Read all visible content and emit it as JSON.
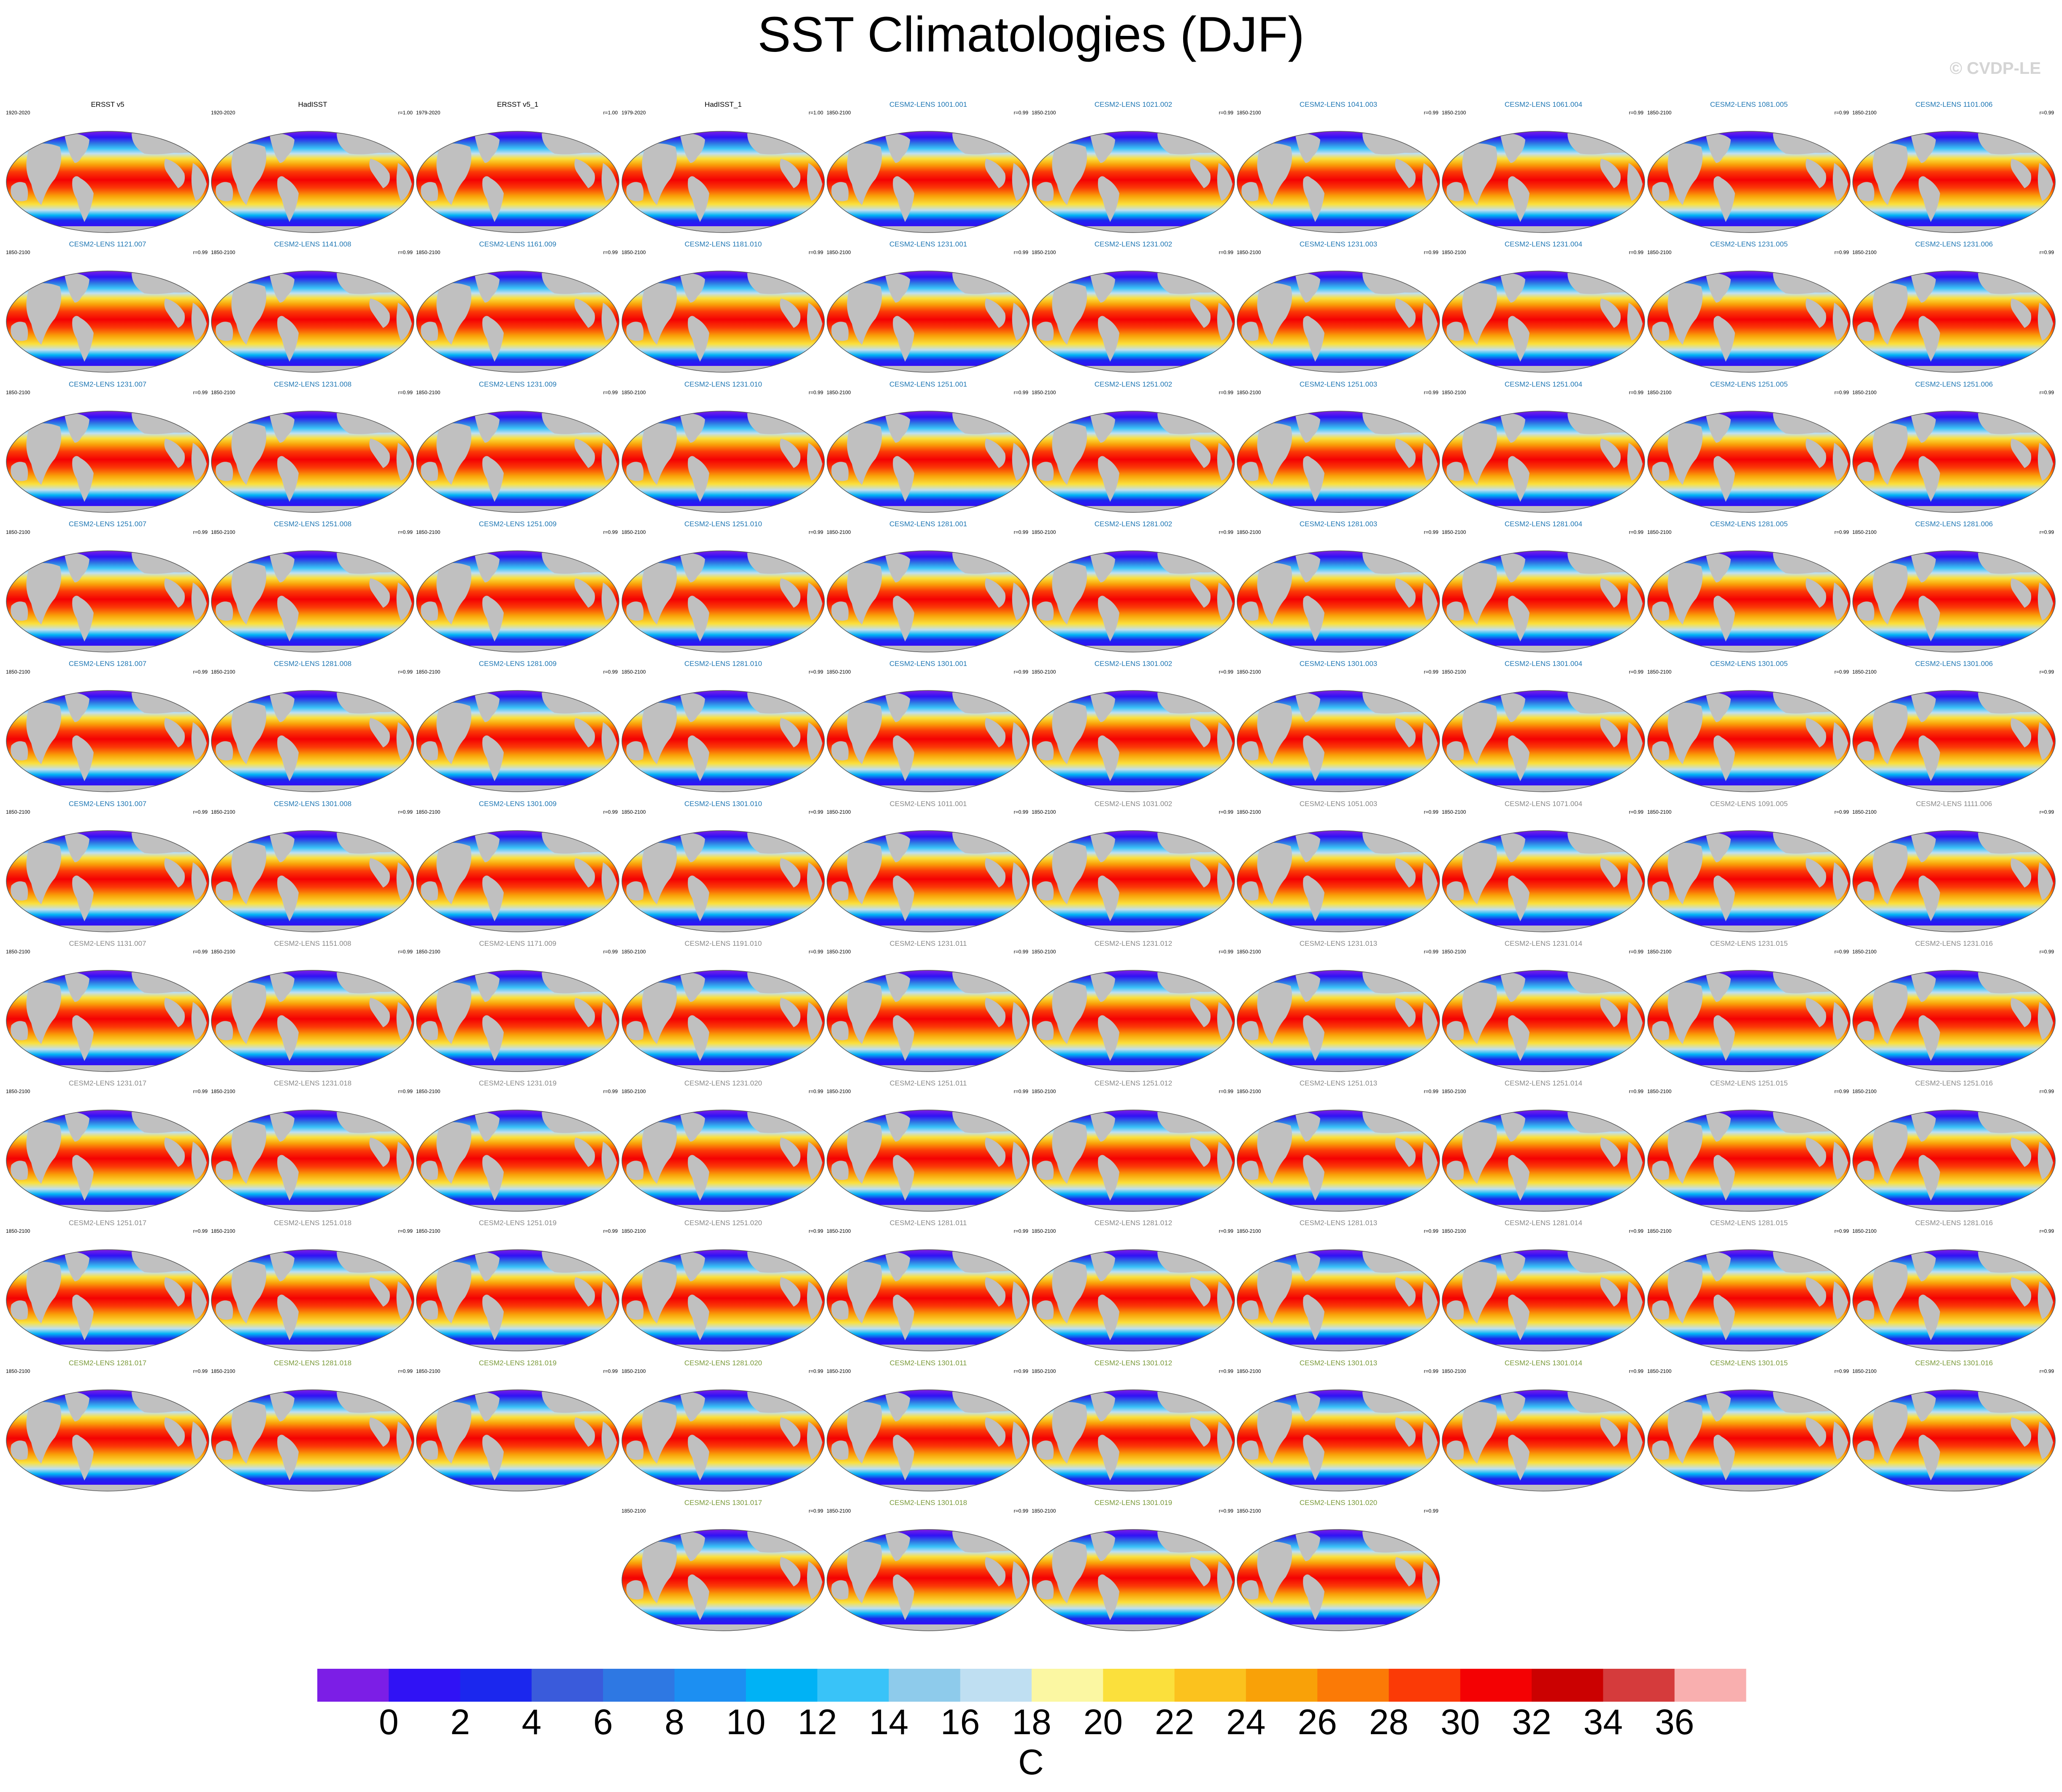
{
  "title": "SST Climatologies (DJF)",
  "watermark": "© CVDP-LE",
  "colors": {
    "land": "#c0c0c0",
    "obs_title": "#000000",
    "cesm_blue": "#1f77b4",
    "cesm_gray": "#888888",
    "cesm_green": "#7a9a3a"
  },
  "chart_data": {
    "type": "heatmap",
    "title": "SST Climatologies (DJF)",
    "projection": "Robinson-style global map",
    "colorbar": {
      "unit": "C",
      "levels": [
        0,
        2,
        4,
        6,
        8,
        10,
        12,
        14,
        16,
        18,
        20,
        22,
        24,
        26,
        28,
        30,
        32,
        34,
        36
      ],
      "colors": [
        "#7c1ee6",
        "#3012f5",
        "#1b27ee",
        "#3a5bdb",
        "#2e78e3",
        "#1c8ff2",
        "#00b2f5",
        "#39c3f8",
        "#8ecbeb",
        "#bfdff2",
        "#fbf7a2",
        "#fbe03c",
        "#fbc21e",
        "#f9a108",
        "#fb7a06",
        "#fb3a06",
        "#f40103",
        "#cb0101",
        "#d53b3c",
        "#f9afaf"
      ],
      "tick_labels": [
        "0",
        "2",
        "4",
        "6",
        "8",
        "10",
        "12",
        "14",
        "16",
        "18",
        "20",
        "22",
        "24",
        "26",
        "28",
        "30",
        "32",
        "34",
        "36"
      ]
    },
    "panels": [
      {
        "label": "ERSST v5",
        "period": "1920-2020",
        "corr": "",
        "style": "obs"
      },
      {
        "label": "HadISST",
        "period": "1920-2020",
        "corr": "r=1.00",
        "style": "obs"
      },
      {
        "label": "ERSST v5_1",
        "period": "1979-2020",
        "corr": "r=1.00",
        "style": "obs"
      },
      {
        "label": "HadISST_1",
        "period": "1979-2020",
        "corr": "r=1.00",
        "style": "obs"
      },
      {
        "label": "CESM2-LENS 1001.001",
        "period": "1850-2100",
        "corr": "r=0.99",
        "style": "blue"
      },
      {
        "label": "CESM2-LENS 1021.002",
        "period": "1850-2100",
        "corr": "r=0.99",
        "style": "blue"
      },
      {
        "label": "CESM2-LENS 1041.003",
        "period": "1850-2100",
        "corr": "r=0.99",
        "style": "blue"
      },
      {
        "label": "CESM2-LENS 1061.004",
        "period": "1850-2100",
        "corr": "r=0.99",
        "style": "blue"
      },
      {
        "label": "CESM2-LENS 1081.005",
        "period": "1850-2100",
        "corr": "r=0.99",
        "style": "blue"
      },
      {
        "label": "CESM2-LENS 1101.006",
        "period": "1850-2100",
        "corr": "r=0.99",
        "style": "blue"
      },
      {
        "label": "CESM2-LENS 1121.007",
        "period": "1850-2100",
        "corr": "r=0.99",
        "style": "blue"
      },
      {
        "label": "CESM2-LENS 1141.008",
        "period": "1850-2100",
        "corr": "r=0.99",
        "style": "blue"
      },
      {
        "label": "CESM2-LENS 1161.009",
        "period": "1850-2100",
        "corr": "r=0.99",
        "style": "blue"
      },
      {
        "label": "CESM2-LENS 1181.010",
        "period": "1850-2100",
        "corr": "r=0.99",
        "style": "blue"
      },
      {
        "label": "CESM2-LENS 1231.001",
        "period": "1850-2100",
        "corr": "r=0.99",
        "style": "blue"
      },
      {
        "label": "CESM2-LENS 1231.002",
        "period": "1850-2100",
        "corr": "r=0.99",
        "style": "blue"
      },
      {
        "label": "CESM2-LENS 1231.003",
        "period": "1850-2100",
        "corr": "r=0.99",
        "style": "blue"
      },
      {
        "label": "CESM2-LENS 1231.004",
        "period": "1850-2100",
        "corr": "r=0.99",
        "style": "blue"
      },
      {
        "label": "CESM2-LENS 1231.005",
        "period": "1850-2100",
        "corr": "r=0.99",
        "style": "blue"
      },
      {
        "label": "CESM2-LENS 1231.006",
        "period": "1850-2100",
        "corr": "r=0.99",
        "style": "blue"
      },
      {
        "label": "CESM2-LENS 1231.007",
        "period": "1850-2100",
        "corr": "r=0.99",
        "style": "blue"
      },
      {
        "label": "CESM2-LENS 1231.008",
        "period": "1850-2100",
        "corr": "r=0.99",
        "style": "blue"
      },
      {
        "label": "CESM2-LENS 1231.009",
        "period": "1850-2100",
        "corr": "r=0.99",
        "style": "blue"
      },
      {
        "label": "CESM2-LENS 1231.010",
        "period": "1850-2100",
        "corr": "r=0.99",
        "style": "blue"
      },
      {
        "label": "CESM2-LENS 1251.001",
        "period": "1850-2100",
        "corr": "r=0.99",
        "style": "blue"
      },
      {
        "label": "CESM2-LENS 1251.002",
        "period": "1850-2100",
        "corr": "r=0.99",
        "style": "blue"
      },
      {
        "label": "CESM2-LENS 1251.003",
        "period": "1850-2100",
        "corr": "r=0.99",
        "style": "blue"
      },
      {
        "label": "CESM2-LENS 1251.004",
        "period": "1850-2100",
        "corr": "r=0.99",
        "style": "blue"
      },
      {
        "label": "CESM2-LENS 1251.005",
        "period": "1850-2100",
        "corr": "r=0.99",
        "style": "blue"
      },
      {
        "label": "CESM2-LENS 1251.006",
        "period": "1850-2100",
        "corr": "r=0.99",
        "style": "blue"
      },
      {
        "label": "CESM2-LENS 1251.007",
        "period": "1850-2100",
        "corr": "r=0.99",
        "style": "blue"
      },
      {
        "label": "CESM2-LENS 1251.008",
        "period": "1850-2100",
        "corr": "r=0.99",
        "style": "blue"
      },
      {
        "label": "CESM2-LENS 1251.009",
        "period": "1850-2100",
        "corr": "r=0.99",
        "style": "blue"
      },
      {
        "label": "CESM2-LENS 1251.010",
        "period": "1850-2100",
        "corr": "r=0.99",
        "style": "blue"
      },
      {
        "label": "CESM2-LENS 1281.001",
        "period": "1850-2100",
        "corr": "r=0.99",
        "style": "blue"
      },
      {
        "label": "CESM2-LENS 1281.002",
        "period": "1850-2100",
        "corr": "r=0.99",
        "style": "blue"
      },
      {
        "label": "CESM2-LENS 1281.003",
        "period": "1850-2100",
        "corr": "r=0.99",
        "style": "blue"
      },
      {
        "label": "CESM2-LENS 1281.004",
        "period": "1850-2100",
        "corr": "r=0.99",
        "style": "blue"
      },
      {
        "label": "CESM2-LENS 1281.005",
        "period": "1850-2100",
        "corr": "r=0.99",
        "style": "blue"
      },
      {
        "label": "CESM2-LENS 1281.006",
        "period": "1850-2100",
        "corr": "r=0.99",
        "style": "blue"
      },
      {
        "label": "CESM2-LENS 1281.007",
        "period": "1850-2100",
        "corr": "r=0.99",
        "style": "blue"
      },
      {
        "label": "CESM2-LENS 1281.008",
        "period": "1850-2100",
        "corr": "r=0.99",
        "style": "blue"
      },
      {
        "label": "CESM2-LENS 1281.009",
        "period": "1850-2100",
        "corr": "r=0.99",
        "style": "blue"
      },
      {
        "label": "CESM2-LENS 1281.010",
        "period": "1850-2100",
        "corr": "r=0.99",
        "style": "blue"
      },
      {
        "label": "CESM2-LENS 1301.001",
        "period": "1850-2100",
        "corr": "r=0.99",
        "style": "blue"
      },
      {
        "label": "CESM2-LENS 1301.002",
        "period": "1850-2100",
        "corr": "r=0.99",
        "style": "blue"
      },
      {
        "label": "CESM2-LENS 1301.003",
        "period": "1850-2100",
        "corr": "r=0.99",
        "style": "blue"
      },
      {
        "label": "CESM2-LENS 1301.004",
        "period": "1850-2100",
        "corr": "r=0.99",
        "style": "blue"
      },
      {
        "label": "CESM2-LENS 1301.005",
        "period": "1850-2100",
        "corr": "r=0.99",
        "style": "blue"
      },
      {
        "label": "CESM2-LENS 1301.006",
        "period": "1850-2100",
        "corr": "r=0.99",
        "style": "blue"
      },
      {
        "label": "CESM2-LENS 1301.007",
        "period": "1850-2100",
        "corr": "r=0.99",
        "style": "blue"
      },
      {
        "label": "CESM2-LENS 1301.008",
        "period": "1850-2100",
        "corr": "r=0.99",
        "style": "blue"
      },
      {
        "label": "CESM2-LENS 1301.009",
        "period": "1850-2100",
        "corr": "r=0.99",
        "style": "blue"
      },
      {
        "label": "CESM2-LENS 1301.010",
        "period": "1850-2100",
        "corr": "r=0.99",
        "style": "blue"
      },
      {
        "label": "CESM2-LENS 1011.001",
        "period": "1850-2100",
        "corr": "r=0.99",
        "style": "gray"
      },
      {
        "label": "CESM2-LENS 1031.002",
        "period": "1850-2100",
        "corr": "r=0.99",
        "style": "gray"
      },
      {
        "label": "CESM2-LENS 1051.003",
        "period": "1850-2100",
        "corr": "r=0.99",
        "style": "gray"
      },
      {
        "label": "CESM2-LENS 1071.004",
        "period": "1850-2100",
        "corr": "r=0.99",
        "style": "gray"
      },
      {
        "label": "CESM2-LENS 1091.005",
        "period": "1850-2100",
        "corr": "r=0.99",
        "style": "gray"
      },
      {
        "label": "CESM2-LENS 1111.006",
        "period": "1850-2100",
        "corr": "r=0.99",
        "style": "gray"
      },
      {
        "label": "CESM2-LENS 1131.007",
        "period": "1850-2100",
        "corr": "r=0.99",
        "style": "gray"
      },
      {
        "label": "CESM2-LENS 1151.008",
        "period": "1850-2100",
        "corr": "r=0.99",
        "style": "gray"
      },
      {
        "label": "CESM2-LENS 1171.009",
        "period": "1850-2100",
        "corr": "r=0.99",
        "style": "gray"
      },
      {
        "label": "CESM2-LENS 1191.010",
        "period": "1850-2100",
        "corr": "r=0.99",
        "style": "gray"
      },
      {
        "label": "CESM2-LENS 1231.011",
        "period": "1850-2100",
        "corr": "r=0.99",
        "style": "gray"
      },
      {
        "label": "CESM2-LENS 1231.012",
        "period": "1850-2100",
        "corr": "r=0.99",
        "style": "gray"
      },
      {
        "label": "CESM2-LENS 1231.013",
        "period": "1850-2100",
        "corr": "r=0.99",
        "style": "gray"
      },
      {
        "label": "CESM2-LENS 1231.014",
        "period": "1850-2100",
        "corr": "r=0.99",
        "style": "gray"
      },
      {
        "label": "CESM2-LENS 1231.015",
        "period": "1850-2100",
        "corr": "r=0.99",
        "style": "gray"
      },
      {
        "label": "CESM2-LENS 1231.016",
        "period": "1850-2100",
        "corr": "r=0.99",
        "style": "gray"
      },
      {
        "label": "CESM2-LENS 1231.017",
        "period": "1850-2100",
        "corr": "r=0.99",
        "style": "gray"
      },
      {
        "label": "CESM2-LENS 1231.018",
        "period": "1850-2100",
        "corr": "r=0.99",
        "style": "gray"
      },
      {
        "label": "CESM2-LENS 1231.019",
        "period": "1850-2100",
        "corr": "r=0.99",
        "style": "gray"
      },
      {
        "label": "CESM2-LENS 1231.020",
        "period": "1850-2100",
        "corr": "r=0.99",
        "style": "gray"
      },
      {
        "label": "CESM2-LENS 1251.011",
        "period": "1850-2100",
        "corr": "r=0.99",
        "style": "gray"
      },
      {
        "label": "CESM2-LENS 1251.012",
        "period": "1850-2100",
        "corr": "r=0.99",
        "style": "gray"
      },
      {
        "label": "CESM2-LENS 1251.013",
        "period": "1850-2100",
        "corr": "r=0.99",
        "style": "gray"
      },
      {
        "label": "CESM2-LENS 1251.014",
        "period": "1850-2100",
        "corr": "r=0.99",
        "style": "gray"
      },
      {
        "label": "CESM2-LENS 1251.015",
        "period": "1850-2100",
        "corr": "r=0.99",
        "style": "gray"
      },
      {
        "label": "CESM2-LENS 1251.016",
        "period": "1850-2100",
        "corr": "r=0.99",
        "style": "gray"
      },
      {
        "label": "CESM2-LENS 1251.017",
        "period": "1850-2100",
        "corr": "r=0.99",
        "style": "gray"
      },
      {
        "label": "CESM2-LENS 1251.018",
        "period": "1850-2100",
        "corr": "r=0.99",
        "style": "gray"
      },
      {
        "label": "CESM2-LENS 1251.019",
        "period": "1850-2100",
        "corr": "r=0.99",
        "style": "gray"
      },
      {
        "label": "CESM2-LENS 1251.020",
        "period": "1850-2100",
        "corr": "r=0.99",
        "style": "gray"
      },
      {
        "label": "CESM2-LENS 1281.011",
        "period": "1850-2100",
        "corr": "r=0.99",
        "style": "gray"
      },
      {
        "label": "CESM2-LENS 1281.012",
        "period": "1850-2100",
        "corr": "r=0.99",
        "style": "gray"
      },
      {
        "label": "CESM2-LENS 1281.013",
        "period": "1850-2100",
        "corr": "r=0.99",
        "style": "gray"
      },
      {
        "label": "CESM2-LENS 1281.014",
        "period": "1850-2100",
        "corr": "r=0.99",
        "style": "gray"
      },
      {
        "label": "CESM2-LENS 1281.015",
        "period": "1850-2100",
        "corr": "r=0.99",
        "style": "gray"
      },
      {
        "label": "CESM2-LENS 1281.016",
        "period": "1850-2100",
        "corr": "r=0.99",
        "style": "gray"
      },
      {
        "label": "CESM2-LENS 1281.017",
        "period": "1850-2100",
        "corr": "r=0.99",
        "style": "green"
      },
      {
        "label": "CESM2-LENS 1281.018",
        "period": "1850-2100",
        "corr": "r=0.99",
        "style": "green"
      },
      {
        "label": "CESM2-LENS 1281.019",
        "period": "1850-2100",
        "corr": "r=0.99",
        "style": "green"
      },
      {
        "label": "CESM2-LENS 1281.020",
        "period": "1850-2100",
        "corr": "r=0.99",
        "style": "green"
      },
      {
        "label": "CESM2-LENS 1301.011",
        "period": "1850-2100",
        "corr": "r=0.99",
        "style": "green"
      },
      {
        "label": "CESM2-LENS 1301.012",
        "period": "1850-2100",
        "corr": "r=0.99",
        "style": "green"
      },
      {
        "label": "CESM2-LENS 1301.013",
        "period": "1850-2100",
        "corr": "r=0.99",
        "style": "green"
      },
      {
        "label": "CESM2-LENS 1301.014",
        "period": "1850-2100",
        "corr": "r=0.99",
        "style": "green"
      },
      {
        "label": "CESM2-LENS 1301.015",
        "period": "1850-2100",
        "corr": "r=0.99",
        "style": "green"
      },
      {
        "label": "CESM2-LENS 1301.016",
        "period": "1850-2100",
        "corr": "r=0.99",
        "style": "green"
      },
      {
        "label": "CESM2-LENS 1301.017",
        "period": "1850-2100",
        "corr": "r=0.99",
        "style": "green"
      },
      {
        "label": "CESM2-LENS 1301.018",
        "period": "1850-2100",
        "corr": "r=0.99",
        "style": "green"
      },
      {
        "label": "CESM2-LENS 1301.019",
        "period": "1850-2100",
        "corr": "r=0.99",
        "style": "green"
      },
      {
        "label": "CESM2-LENS 1301.020",
        "period": "1850-2100",
        "corr": "r=0.99",
        "style": "green"
      }
    ]
  }
}
